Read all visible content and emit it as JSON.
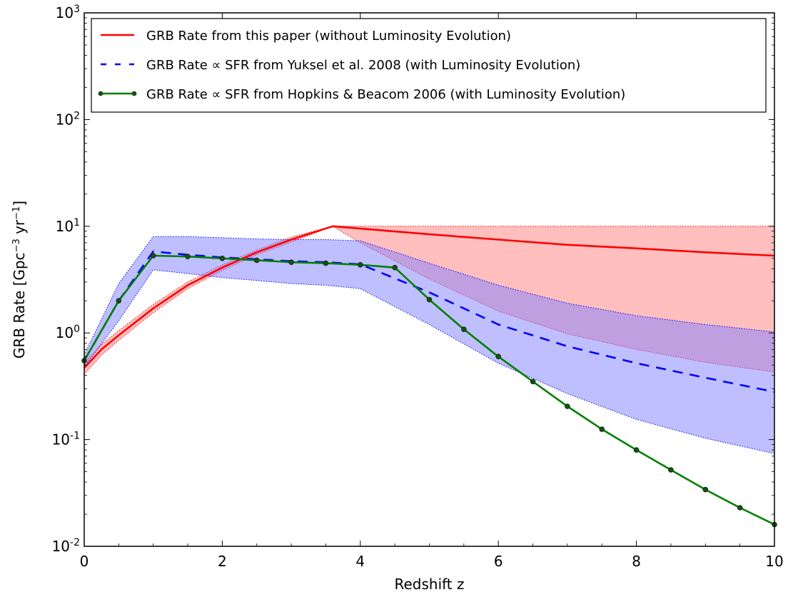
{
  "chart_data": {
    "type": "line",
    "title": "",
    "xlabel": "Redshift z",
    "ylabel_main": "GRB Rate [Gpc",
    "ylabel_exp1": "−3",
    "ylabel_mid": " yr",
    "ylabel_exp2": "−1",
    "ylabel_end": "]",
    "xlim": [
      0,
      10
    ],
    "ylim": [
      0.01,
      1000
    ],
    "yscale": "log",
    "grid": false,
    "legend_position": "top-left",
    "x_ticks": [
      {
        "value": 0,
        "label": "0"
      },
      {
        "value": 2,
        "label": "2"
      },
      {
        "value": 4,
        "label": "4"
      },
      {
        "value": 6,
        "label": "6"
      },
      {
        "value": 8,
        "label": "8"
      },
      {
        "value": 10,
        "label": "10"
      }
    ],
    "y_ticks": [
      {
        "value": 0.01,
        "base": "10",
        "exp": "-2"
      },
      {
        "value": 0.1,
        "base": "10",
        "exp": "-1"
      },
      {
        "value": 1,
        "base": "10",
        "exp": "0"
      },
      {
        "value": 10,
        "base": "10",
        "exp": "1"
      },
      {
        "value": 100,
        "base": "10",
        "exp": "2"
      },
      {
        "value": 1000,
        "base": "10",
        "exp": "3"
      }
    ],
    "legend": [
      {
        "label": "GRB Rate from this paper (without Luminosity Evolution)"
      },
      {
        "label": "GRB Rate ∝ SFR from Yuksel et al. 2008 (with Luminosity Evolution)"
      },
      {
        "label": "GRB Rate ∝ SFR from Hopkins & Beacom 2006 (with Luminosity Evolution)"
      }
    ],
    "series": [
      {
        "color": "#ff0000",
        "style": "solid",
        "x": [
          0,
          0.25,
          0.5,
          1.0,
          1.5,
          2.0,
          2.5,
          3.0,
          3.6,
          4.0,
          5.0,
          6.0,
          7.0,
          8.0,
          9.0,
          10.0
        ],
        "y": [
          0.47,
          0.7,
          0.95,
          1.7,
          2.8,
          4.1,
          5.7,
          7.5,
          10.0,
          9.5,
          8.4,
          7.5,
          6.7,
          6.2,
          5.7,
          5.3
        ],
        "band_upper": [
          0.53,
          0.78,
          1.05,
          1.85,
          3.0,
          4.35,
          6.0,
          7.9,
          10.0,
          10.0,
          10.0,
          10.0,
          10.0,
          10.0,
          10.0,
          10.0
        ],
        "band_lower": [
          0.41,
          0.62,
          0.85,
          1.55,
          2.6,
          3.85,
          5.4,
          7.1,
          10.0,
          7.0,
          3.2,
          1.6,
          0.98,
          0.7,
          0.53,
          0.43
        ],
        "band_color": "#ff7f7f"
      },
      {
        "color": "#0000ff",
        "style": "dashed",
        "x": [
          0,
          0.5,
          1.0,
          1.5,
          2.0,
          2.5,
          3.0,
          3.5,
          4.0,
          5.0,
          6.0,
          7.0,
          8.0,
          9.0,
          10.0
        ],
        "y": [
          0.55,
          2.0,
          5.8,
          5.4,
          5.1,
          4.9,
          4.7,
          4.6,
          4.4,
          2.4,
          1.2,
          0.75,
          0.52,
          0.38,
          0.28
        ],
        "band_upper": [
          0.62,
          2.9,
          8.0,
          8.0,
          7.8,
          7.6,
          7.5,
          7.5,
          7.3,
          4.5,
          2.8,
          1.9,
          1.45,
          1.2,
          1.02
        ],
        "band_lower": [
          0.48,
          1.3,
          3.9,
          3.6,
          3.3,
          3.1,
          2.9,
          2.8,
          2.6,
          1.2,
          0.52,
          0.27,
          0.155,
          0.103,
          0.074
        ],
        "band_color": "#7f7fff"
      },
      {
        "color": "#007f00",
        "style": "solid-markers",
        "x": [
          0,
          0.5,
          1.0,
          1.5,
          2.0,
          2.5,
          3.0,
          3.5,
          4.0,
          4.5,
          5.0,
          5.5,
          6.0,
          6.5,
          7.0,
          7.5,
          8.0,
          8.5,
          9.0,
          9.5,
          10.0
        ],
        "y": [
          0.55,
          2.0,
          5.3,
          5.2,
          5.0,
          4.8,
          4.6,
          4.5,
          4.35,
          4.1,
          2.05,
          1.08,
          0.6,
          0.35,
          0.205,
          0.125,
          0.08,
          0.052,
          0.034,
          0.023,
          0.016
        ]
      }
    ]
  }
}
